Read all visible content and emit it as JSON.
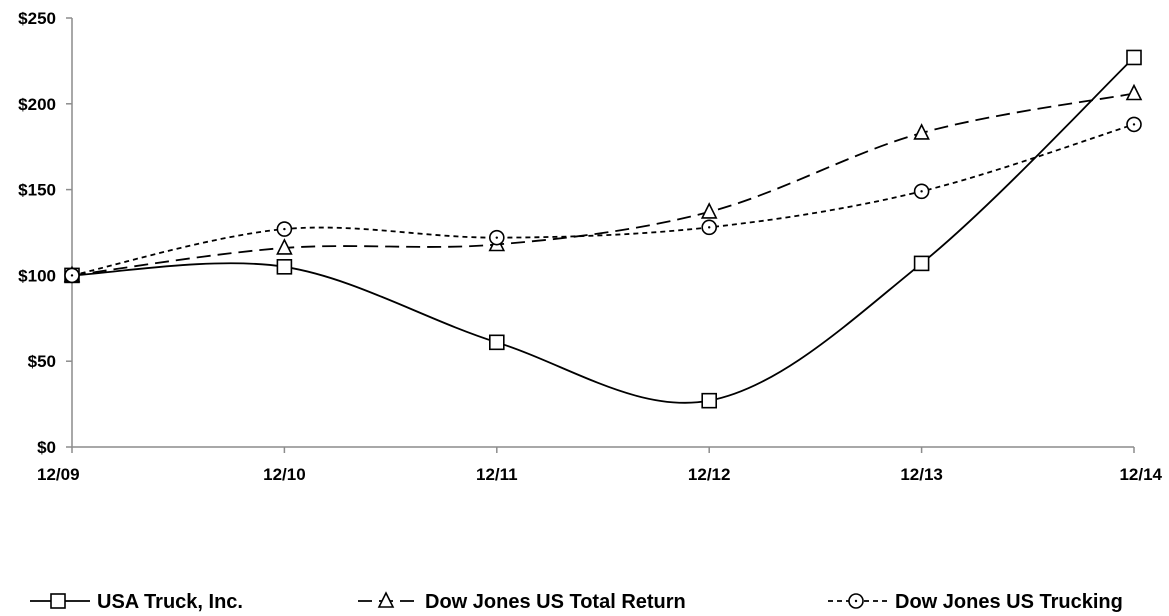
{
  "chart_data": {
    "type": "line",
    "title": "",
    "xlabel": "",
    "ylabel": "",
    "categories": [
      "12/09",
      "12/10",
      "12/11",
      "12/12",
      "12/13",
      "12/14"
    ],
    "y_ticks": [
      "$0",
      "$50",
      "$100",
      "$150",
      "$200",
      "$250"
    ],
    "ylim": [
      0,
      250
    ],
    "grid": false,
    "legend_position": "bottom",
    "series": [
      {
        "name": "USA Truck, Inc.",
        "marker": "square",
        "line_style": "solid",
        "values": [
          100,
          105,
          61,
          27,
          107,
          227
        ]
      },
      {
        "name": "Dow Jones US Total Return",
        "marker": "triangle",
        "line_style": "long-dash",
        "values": [
          100,
          116,
          118,
          137,
          183,
          206
        ]
      },
      {
        "name": "Dow Jones US Trucking",
        "marker": "circle",
        "line_style": "short-dash",
        "values": [
          100,
          127,
          122,
          128,
          149,
          188
        ]
      }
    ]
  }
}
